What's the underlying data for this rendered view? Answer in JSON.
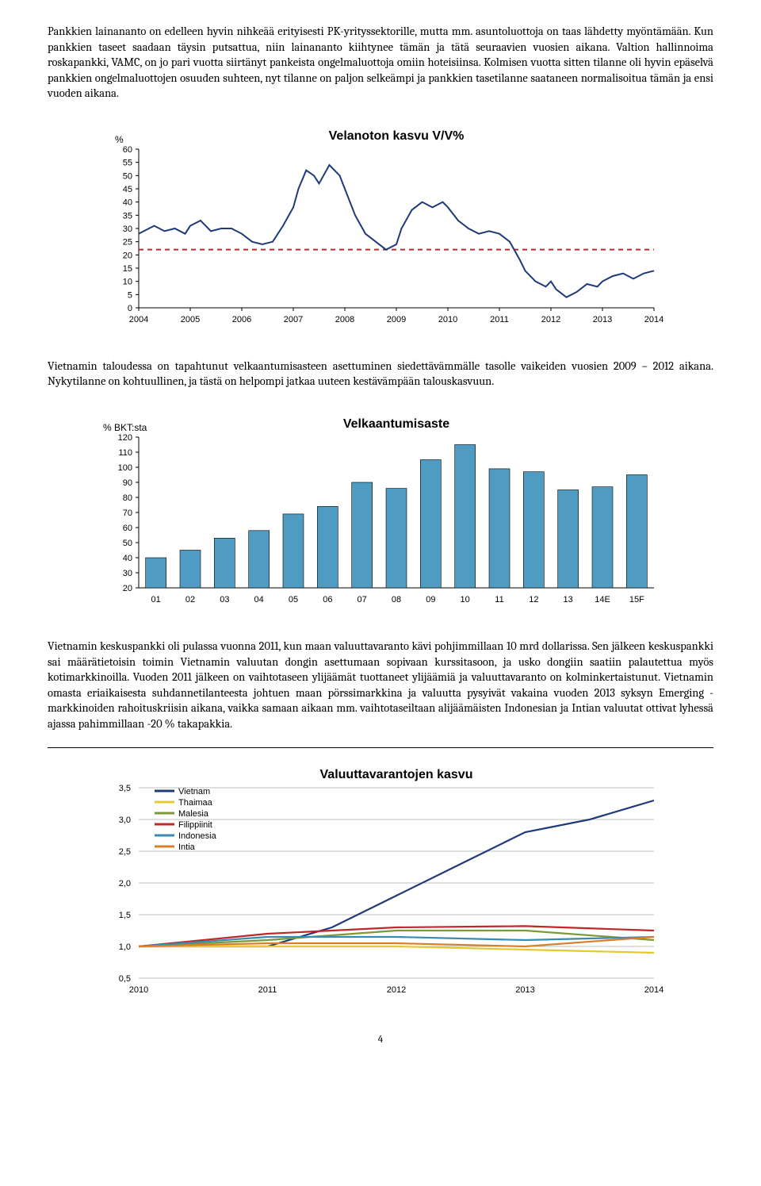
{
  "para1": "Pankkien lainananto on edelleen hyvin nihkeää erityisesti PK-yrityssektorille, mutta mm. asuntoluottoja on taas lähdetty myöntämään. Kun pankkien taseet saadaan täysin putsattua, niin lainananto kiihtynee tämän ja tätä seuraavien vuosien aikana. Valtion hallinnoima roskapankki, VAMC, on jo pari vuotta siirtänyt pankeista ongelmaluottoja omiin hoteisiinsa. Kolmisen vuotta sitten tilanne oli hyvin epäselvä pankkien ongelmaluottojen osuuden suhteen, nyt tilanne on paljon selkeämpi ja pankkien tasetilanne saataneen normalisoitua tämän ja ensi vuoden aikana.",
  "para2": "Vietnamin taloudessa on tapahtunut velkaantumisasteen asettuminen siedettävämmälle tasolle vaikeiden vuosien 2009 – 2012 aikana. Nykytilanne on kohtuullinen, ja tästä on helpompi jatkaa uuteen kestävämpään talouskasvuun.",
  "para3": "Vietnamin keskuspankki oli pulassa vuonna 2011, kun maan valuuttavaranto kävi pohjimmillaan 10 mrd dollarissa. Sen jälkeen keskuspankki sai määrätietoisin toimin Vietnamin valuutan dongin asettumaan sopivaan kurssitasoon, ja usko dongiin saatiin palautettua myös kotimarkkinoilla. Vuoden 2011 jälkeen on vaihtotaseen ylijäämät tuottaneet ylijäämiä ja valuuttavaranto on kolminkertaistunut. Vietnamin omasta eriaikaisesta suhdannetilanteesta johtuen maan pörssimarkkina ja valuutta pysyivät vakaina vuoden 2013 syksyn Emerging -markkinoiden rahoituskriisin aikana, vaikka samaan aikaan mm. vaihtotaseiltaan alijäämäisten Indonesian ja Intian valuutat ottivat lyhessä ajassa pahimmillaan -20 % takapakkia.",
  "pagenum": "4",
  "chart1": {
    "type": "line",
    "title": "Velanoton kasvu V/V%",
    "ylabel": "%",
    "ylim": [
      0,
      60
    ],
    "ytick_step": 5,
    "xlabels": [
      "2004",
      "2005",
      "2006",
      "2007",
      "2008",
      "2009",
      "2010",
      "2011",
      "2012",
      "2013",
      "2014"
    ],
    "line_color": "#1f3a7a",
    "ref_line_color": "#c0272d",
    "ref_value": 22,
    "background_color": "#ffffff",
    "axis_color": "#000000",
    "label_fontsize": 11,
    "line_width": 2,
    "ref_dash": "6,5",
    "series": [
      [
        0.0,
        28
      ],
      [
        0.3,
        31
      ],
      [
        0.5,
        29
      ],
      [
        0.7,
        30
      ],
      [
        0.9,
        28
      ],
      [
        1.0,
        31
      ],
      [
        1.2,
        33
      ],
      [
        1.4,
        29
      ],
      [
        1.6,
        30
      ],
      [
        1.8,
        30
      ],
      [
        2.0,
        28
      ],
      [
        2.2,
        25
      ],
      [
        2.4,
        24
      ],
      [
        2.6,
        25
      ],
      [
        2.8,
        31
      ],
      [
        3.0,
        38
      ],
      [
        3.1,
        45
      ],
      [
        3.25,
        52
      ],
      [
        3.4,
        50
      ],
      [
        3.5,
        47
      ],
      [
        3.7,
        54
      ],
      [
        3.9,
        50
      ],
      [
        4.0,
        45
      ],
      [
        4.2,
        35
      ],
      [
        4.4,
        28
      ],
      [
        4.6,
        25
      ],
      [
        4.8,
        22
      ],
      [
        5.0,
        24
      ],
      [
        5.1,
        30
      ],
      [
        5.3,
        37
      ],
      [
        5.5,
        40
      ],
      [
        5.7,
        38
      ],
      [
        5.9,
        40
      ],
      [
        6.0,
        38
      ],
      [
        6.2,
        33
      ],
      [
        6.4,
        30
      ],
      [
        6.6,
        28
      ],
      [
        6.8,
        29
      ],
      [
        7.0,
        28
      ],
      [
        7.2,
        25
      ],
      [
        7.4,
        18
      ],
      [
        7.5,
        14
      ],
      [
        7.7,
        10
      ],
      [
        7.9,
        8
      ],
      [
        8.0,
        10
      ],
      [
        8.1,
        7
      ],
      [
        8.3,
        4
      ],
      [
        8.5,
        6
      ],
      [
        8.7,
        9
      ],
      [
        8.9,
        8
      ],
      [
        9.0,
        10
      ],
      [
        9.2,
        12
      ],
      [
        9.4,
        13
      ],
      [
        9.6,
        11
      ],
      [
        9.8,
        13
      ],
      [
        10.0,
        14
      ]
    ]
  },
  "chart2": {
    "type": "bar",
    "title": "Velkaantumisaste",
    "ylabel": "% BKT:sta",
    "ylim": [
      20,
      120
    ],
    "ytick_step": 10,
    "categories": [
      "01",
      "02",
      "03",
      "04",
      "05",
      "06",
      "07",
      "08",
      "09",
      "10",
      "11",
      "12",
      "13",
      "14E",
      "15F"
    ],
    "values": [
      40,
      45,
      53,
      58,
      69,
      74,
      90,
      86,
      105,
      115,
      99,
      97,
      85,
      87,
      95
    ],
    "bar_color": "#4f9bc2",
    "bar_border": "#000000",
    "background_color": "#ffffff",
    "axis_color": "#000000",
    "label_fontsize": 11,
    "bar_width": 0.6
  },
  "chart3": {
    "type": "line",
    "title": "Valuuttavarantojen kasvu",
    "ylim": [
      0.5,
      3.5
    ],
    "ytick_step": 0.5,
    "xlabels": [
      "2010",
      "2011",
      "2012",
      "2013",
      "2014"
    ],
    "grid_color": "#bfbfbf",
    "background_color": "#ffffff",
    "axis_color": "#000000",
    "label_fontsize": 11,
    "line_width": 2.2,
    "legend": [
      {
        "name": "Vietnam",
        "color": "#1f3a7a"
      },
      {
        "name": "Thaimaa",
        "color": "#e6c830"
      },
      {
        "name": "Malesia",
        "color": "#7a9a3a"
      },
      {
        "name": "Filippiinit",
        "color": "#c0272d"
      },
      {
        "name": "Indonesia",
        "color": "#3b8bb0"
      },
      {
        "name": "Intia",
        "color": "#d97f2a"
      }
    ],
    "series": {
      "Vietnam": [
        [
          0,
          1.0
        ],
        [
          1,
          1.0
        ],
        [
          1.5,
          1.3
        ],
        [
          2,
          1.8
        ],
        [
          2.5,
          2.3
        ],
        [
          3,
          2.8
        ],
        [
          3.5,
          3.0
        ],
        [
          4,
          3.3
        ]
      ],
      "Thaimaa": [
        [
          0,
          1.0
        ],
        [
          1,
          1.0
        ],
        [
          2,
          1.0
        ],
        [
          3,
          0.95
        ],
        [
          4,
          0.9
        ]
      ],
      "Malesia": [
        [
          0,
          1.0
        ],
        [
          1,
          1.1
        ],
        [
          2,
          1.25
        ],
        [
          3,
          1.25
        ],
        [
          4,
          1.1
        ]
      ],
      "Filippiinit": [
        [
          0,
          1.0
        ],
        [
          1,
          1.2
        ],
        [
          2,
          1.3
        ],
        [
          3,
          1.32
        ],
        [
          4,
          1.25
        ]
      ],
      "Indonesia": [
        [
          0,
          1.0
        ],
        [
          1,
          1.15
        ],
        [
          2,
          1.15
        ],
        [
          3,
          1.1
        ],
        [
          4,
          1.15
        ]
      ],
      "Intia": [
        [
          0,
          1.0
        ],
        [
          1,
          1.05
        ],
        [
          2,
          1.05
        ],
        [
          3,
          1.0
        ],
        [
          4,
          1.15
        ]
      ]
    }
  }
}
